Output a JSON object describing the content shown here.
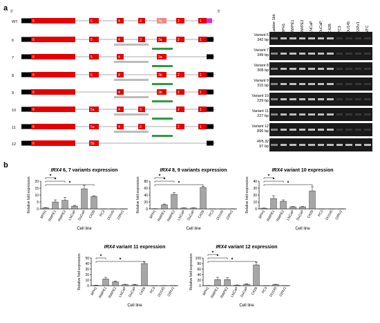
{
  "panel_labels": {
    "a": "a",
    "b": "b"
  },
  "diagram": {
    "strand_labels": [
      "3'",
      "5'"
    ],
    "wt_label": "WT",
    "rows": [
      {
        "label": "6",
        "exons": [
          "6",
          "5",
          "4",
          "3",
          "3a",
          "2",
          "1"
        ]
      },
      {
        "label": "7",
        "exons": [
          "6",
          "5",
          "4",
          "3a"
        ]
      },
      {
        "label": "8",
        "exons": [
          "6",
          "5",
          "4",
          "3b",
          "2",
          "1"
        ]
      },
      {
        "label": "9",
        "exons": [
          "6",
          "4",
          "3b",
          "2",
          "1"
        ]
      },
      {
        "label": "10",
        "exons": [
          "6",
          "5a",
          "4",
          "3",
          "2",
          "1"
        ]
      },
      {
        "label": "11",
        "exons": [
          "6",
          "5a",
          "4",
          "3",
          "2",
          "1"
        ]
      },
      {
        "label": "12",
        "exons": [
          "6",
          "5b"
        ]
      }
    ],
    "wt_exons": [
      "6",
      "5",
      "4",
      "3",
      "3a",
      "2",
      "1"
    ]
  },
  "gel": {
    "lanes": [
      "Ladder 1kb",
      "BPH1",
      "RWPE1",
      "RWPE2",
      "LNCaP",
      "DuCaP",
      "C42B",
      "PC3",
      "DU145",
      "22RV1",
      "NTC"
    ],
    "bands": [
      {
        "name": "Variant 6",
        "size": "342 bp"
      },
      {
        "name": "Variant 7",
        "size": "349 bp"
      },
      {
        "name": "Variant 8",
        "size": "308 bp"
      },
      {
        "name": "Variant 9",
        "size": "315 bp"
      },
      {
        "name": "Variant 10",
        "size": "229 bp"
      },
      {
        "name": "Variant 11",
        "size": "227 bp"
      },
      {
        "name": "Variant 12",
        "size": "896 bp"
      },
      {
        "name": "RPL32",
        "size": "97 bp"
      }
    ]
  },
  "chart_data": [
    {
      "type": "bar",
      "title_gene": "IRX4",
      "title_rest": " 6, 7 variants expression",
      "categories": [
        "BPH1",
        "RWPE1",
        "RWPE2",
        "LNCaP",
        "DuCaP",
        "C42B",
        "PC3",
        "DU145",
        "22RV1"
      ],
      "values": [
        0.8,
        5,
        6.2,
        2,
        14.5,
        9,
        0,
        0,
        0
      ],
      "errors": [
        0.2,
        1.5,
        2,
        0.5,
        2.5,
        0.5,
        0,
        0,
        0
      ],
      "ylim": [
        0,
        20
      ],
      "yticks": [
        "0",
        "5",
        "10",
        "15",
        "20"
      ],
      "xlabel": "Cell line",
      "ylabel": "Relative fold expression",
      "sig": [
        [
          0,
          1
        ],
        [
          0,
          2
        ],
        [
          0,
          5
        ]
      ],
      "sig_mark": "*"
    },
    {
      "type": "bar",
      "title_gene": "IRX4",
      "title_rest": " 8, 9 variants expression",
      "categories": [
        "BPH1",
        "RWPE1",
        "RWPE2",
        "LNCaP",
        "DuCaP",
        "C42B",
        "PC3",
        "DU145",
        "22RV1"
      ],
      "values": [
        0.5,
        12,
        42,
        2.5,
        2.5,
        62,
        0,
        0,
        0
      ],
      "errors": [
        0.2,
        2,
        5,
        0.5,
        0.5,
        3,
        0,
        0,
        0
      ],
      "ylim": [
        0,
        80
      ],
      "yticks": [
        "0",
        "20",
        "40",
        "60",
        "80"
      ],
      "xlabel": "Cell line",
      "ylabel": "Relative fold expression",
      "sig": [
        [
          0,
          1
        ],
        [
          0,
          2
        ],
        [
          0,
          5
        ]
      ],
      "sig_mark": "*"
    },
    {
      "type": "bar",
      "title_gene": "IRX4",
      "title_rest": " variant 10 expression",
      "categories": [
        "BPH1",
        "RWPE1",
        "RWPE2",
        "LNCaP",
        "DuCaP",
        "C42B",
        "PC3",
        "DU145",
        "22RV1"
      ],
      "values": [
        1,
        15,
        11,
        3,
        3,
        26,
        0,
        0,
        0
      ],
      "errors": [
        0.2,
        4,
        2,
        0.5,
        0.5,
        6,
        0,
        0,
        0
      ],
      "ylim": [
        0,
        40
      ],
      "yticks": [
        "0",
        "10",
        "20",
        "30",
        "40"
      ],
      "xlabel": "Cell line",
      "ylabel": "Relative fold expression",
      "sig": [
        [
          0,
          1
        ],
        [
          0,
          2
        ],
        [
          0,
          5
        ]
      ],
      "sig_mark": "*"
    },
    {
      "type": "bar",
      "title_gene": "IRX4",
      "title_rest": " variant 11 expression",
      "categories": [
        "BPH1",
        "RWPE1",
        "RWPE2",
        "LNCaP",
        "DuCaP",
        "C42B",
        "PC3",
        "DU145",
        "22RV1"
      ],
      "values": [
        0.5,
        12,
        7,
        2,
        1.5,
        40,
        0,
        0,
        0
      ],
      "errors": [
        0.2,
        3,
        1.5,
        0.5,
        0.5,
        3,
        0,
        0,
        0
      ],
      "ylim": [
        0,
        50
      ],
      "yticks": [
        "0",
        "10",
        "20",
        "30",
        "40",
        "50"
      ],
      "xlabel": "Cell line",
      "ylabel": "Relative fold expression",
      "sig": [
        [
          0,
          1
        ],
        [
          0,
          5
        ]
      ],
      "sig_mark": "*"
    },
    {
      "type": "bar",
      "title_gene": "IRX4",
      "title_rest": " variant 12 expression",
      "categories": [
        "BPH1",
        "RWPE1",
        "RWPE2",
        "LNCaP",
        "DuCaP",
        "C42B",
        "PC3",
        "DU145",
        "22RV1"
      ],
      "values": [
        0.5,
        22,
        22,
        2,
        5,
        75,
        0,
        4,
        0
      ],
      "errors": [
        0.2,
        8,
        7,
        0.5,
        2,
        10,
        0,
        1,
        0
      ],
      "ylim": [
        0,
        100
      ],
      "yticks": [
        "0",
        "20",
        "40",
        "60",
        "80",
        "100"
      ],
      "xlabel": "Cell line",
      "ylabel": "Relative fold expression",
      "sig": [
        [
          0,
          1
        ],
        [
          0,
          2
        ],
        [
          0,
          5
        ]
      ],
      "sig_mark": "*"
    }
  ]
}
